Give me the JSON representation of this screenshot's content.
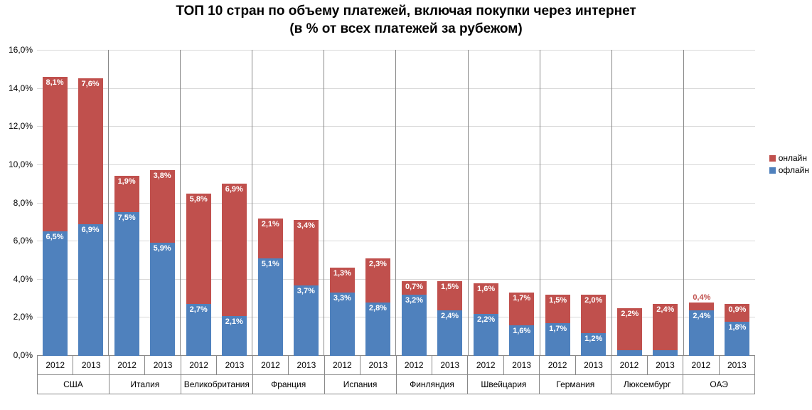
{
  "chart": {
    "type": "stacked-bar",
    "title_line1": "ТОП 10 стран по объему платежей, включая покупки через интернет",
    "title_line2": "(в % от всех платежей за рубежом)",
    "title_fontsize": 19,
    "title_color": "#000000",
    "background_color": "#ffffff",
    "grid_color": "#d9d9d9",
    "axis_color": "#888888",
    "label_fontsize": 12,
    "bar_label_fontsize": 11,
    "bar_label_color": "#ffffff",
    "ymax": 16,
    "ytick_step": 2,
    "yticks": [
      "0,0%",
      "2,0%",
      "4,0%",
      "6,0%",
      "8,0%",
      "10,0%",
      "12,0%",
      "14,0%",
      "16,0%"
    ],
    "series": {
      "offline": {
        "name": "офлайн",
        "color": "#4f81bd"
      },
      "online": {
        "name": "онлайн",
        "color": "#c0504d"
      }
    },
    "legend_position": "right",
    "years": [
      "2012",
      "2013"
    ],
    "countries": [
      {
        "name": "США",
        "years": [
          {
            "year": "2012",
            "offline": 6.5,
            "online": 8.1,
            "offline_label": "6,5%",
            "online_label": "8,1%"
          },
          {
            "year": "2013",
            "offline": 6.9,
            "online": 7.6,
            "offline_label": "6,9%",
            "online_label": "7,6%"
          }
        ]
      },
      {
        "name": "Италия",
        "years": [
          {
            "year": "2012",
            "offline": 7.5,
            "online": 1.9,
            "offline_label": "7,5%",
            "online_label": "1,9%"
          },
          {
            "year": "2013",
            "offline": 5.9,
            "online": 3.8,
            "offline_label": "5,9%",
            "online_label": "3,8%"
          }
        ]
      },
      {
        "name": "Великобритания",
        "years": [
          {
            "year": "2012",
            "offline": 2.7,
            "online": 5.8,
            "offline_label": "2,7%",
            "online_label": "5,8%"
          },
          {
            "year": "2013",
            "offline": 2.1,
            "online": 6.9,
            "offline_label": "2,1%",
            "online_label": "6,9%"
          }
        ]
      },
      {
        "name": "Франция",
        "years": [
          {
            "year": "2012",
            "offline": 5.1,
            "online": 2.1,
            "offline_label": "5,1%",
            "online_label": "2,1%"
          },
          {
            "year": "2013",
            "offline": 3.7,
            "online": 3.4,
            "offline_label": "3,7%",
            "online_label": "3,4%"
          }
        ]
      },
      {
        "name": "Испания",
        "years": [
          {
            "year": "2012",
            "offline": 3.3,
            "online": 1.3,
            "offline_label": "3,3%",
            "online_label": "1,3%"
          },
          {
            "year": "2013",
            "offline": 2.8,
            "online": 2.3,
            "offline_label": "2,8%",
            "online_label": "2,3%"
          }
        ]
      },
      {
        "name": "Финляндия",
        "years": [
          {
            "year": "2012",
            "offline": 3.2,
            "online": 0.7,
            "offline_label": "3,2%",
            "online_label": "0,7%"
          },
          {
            "year": "2013",
            "offline": 2.4,
            "online": 1.5,
            "offline_label": "2,4%",
            "online_label": "1,5%"
          }
        ]
      },
      {
        "name": "Швейцария",
        "years": [
          {
            "year": "2012",
            "offline": 2.2,
            "online": 1.6,
            "offline_label": "2,2%",
            "online_label": "1,6%"
          },
          {
            "year": "2013",
            "offline": 1.6,
            "online": 1.7,
            "offline_label": "1,6%",
            "online_label": "1,7%"
          }
        ]
      },
      {
        "name": "Германия",
        "years": [
          {
            "year": "2012",
            "offline": 1.7,
            "online": 1.5,
            "offline_label": "1,7%",
            "online_label": "1,5%"
          },
          {
            "year": "2013",
            "offline": 1.2,
            "online": 2.0,
            "offline_label": "1,2%",
            "online_label": "2,0%"
          }
        ]
      },
      {
        "name": "Люксембург",
        "years": [
          {
            "year": "2012",
            "offline": 0.3,
            "online": 2.2,
            "offline_label": "0,3%",
            "online_label": "2,2%"
          },
          {
            "year": "2013",
            "offline": 0.3,
            "online": 2.4,
            "offline_label": "0,3%",
            "online_label": "2,4%"
          }
        ]
      },
      {
        "name": "ОАЭ",
        "years": [
          {
            "year": "2012",
            "offline": 2.4,
            "online": 0.4,
            "offline_label": "2,4%",
            "online_label": "0,4%"
          },
          {
            "year": "2013",
            "offline": 1.8,
            "online": 0.9,
            "offline_label": "1,8%",
            "online_label": "0,9%"
          }
        ]
      }
    ]
  }
}
